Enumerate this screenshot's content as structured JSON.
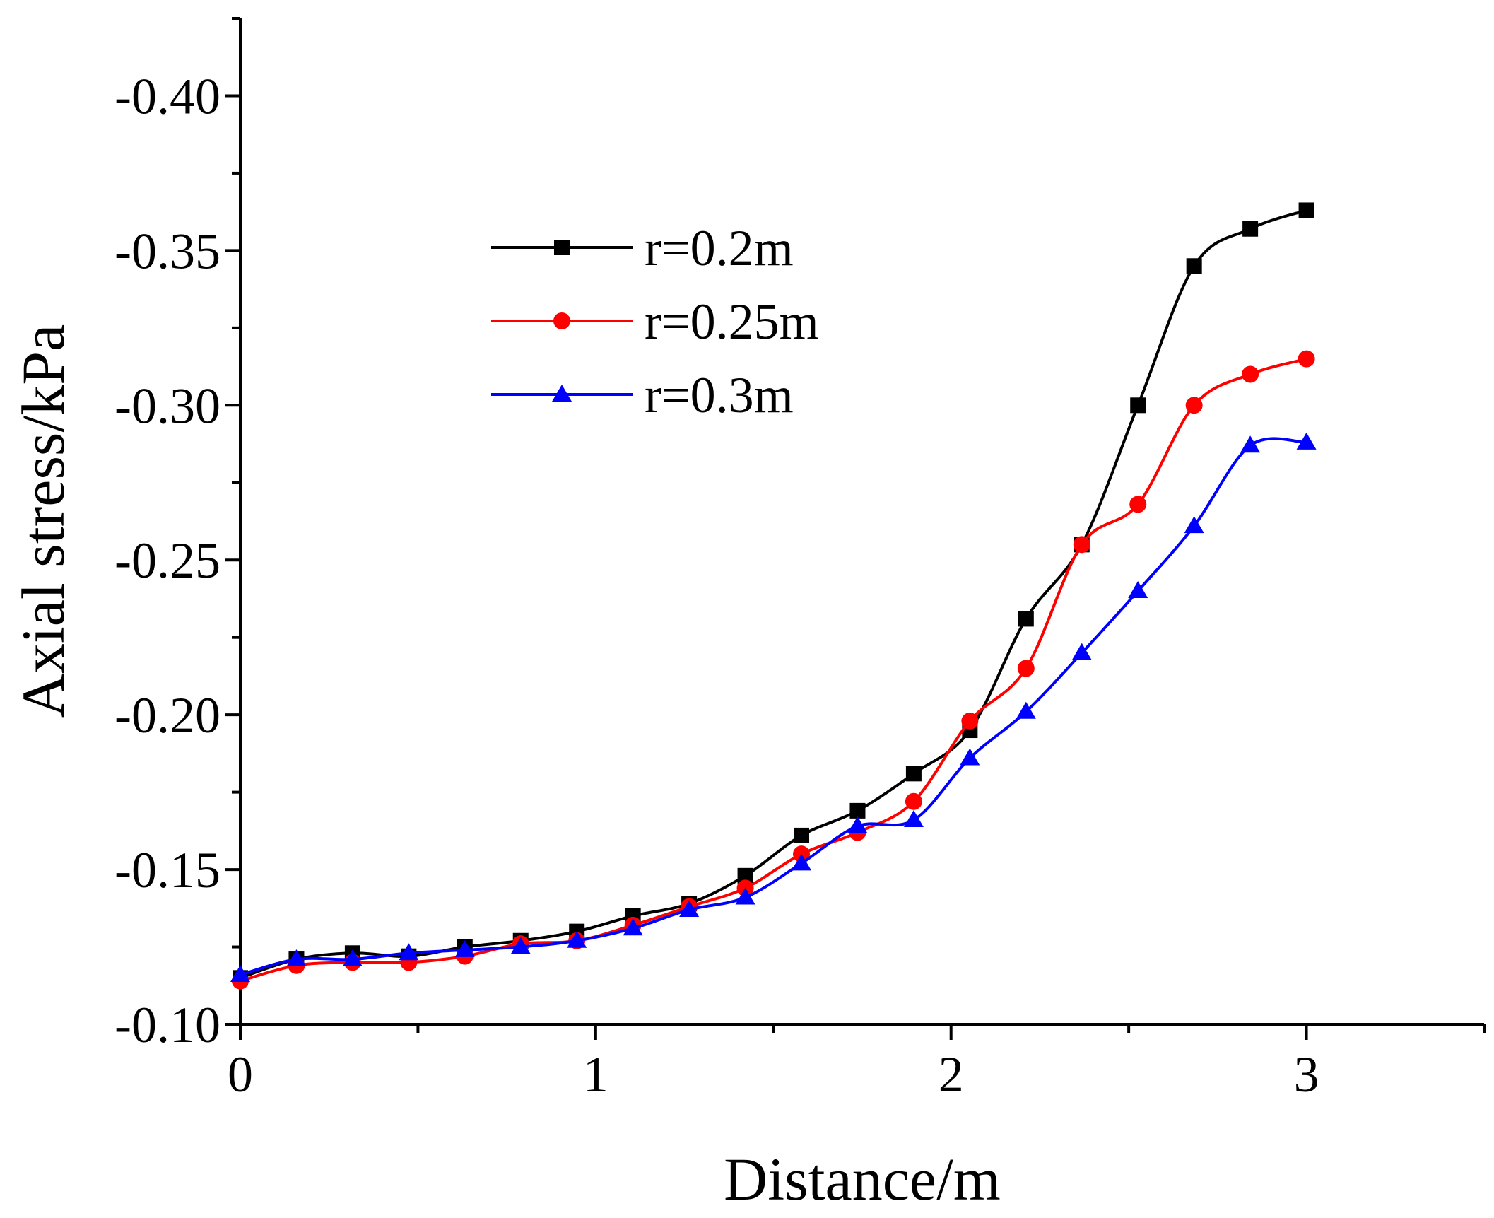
{
  "chart_data": {
    "type": "line",
    "title": "",
    "xlabel": "Distance/m",
    "ylabel": "Axial stress/kPa",
    "xlim": [
      0,
      3.5
    ],
    "ylim": [
      -0.1,
      -0.425
    ],
    "x_ticks": [
      0,
      1,
      2,
      3
    ],
    "x_tick_labels": [
      "0",
      "1",
      "2",
      "3"
    ],
    "y_ticks": [
      -0.1,
      -0.15,
      -0.2,
      -0.25,
      -0.3,
      -0.35,
      -0.4
    ],
    "y_tick_labels": [
      "-0.10",
      "-0.15",
      "-0.20",
      "-0.25",
      "-0.30",
      "-0.35",
      "-0.40"
    ],
    "grid": false,
    "legend_position": "upper-center",
    "series": [
      {
        "name": "r=0.2m",
        "color": "#000000",
        "marker": "square",
        "x": [
          0,
          0.158,
          0.316,
          0.474,
          0.632,
          0.789,
          0.947,
          1.105,
          1.263,
          1.421,
          1.579,
          1.737,
          1.895,
          2.053,
          2.211,
          2.368,
          2.526,
          2.684,
          2.842,
          3.0
        ],
        "y": [
          -0.115,
          -0.121,
          -0.123,
          -0.122,
          -0.125,
          -0.127,
          -0.13,
          -0.135,
          -0.139,
          -0.148,
          -0.161,
          -0.169,
          -0.181,
          -0.195,
          -0.231,
          -0.255,
          -0.3,
          -0.345,
          -0.357,
          -0.363
        ]
      },
      {
        "name": "r=0.25m",
        "color": "#ff0000",
        "marker": "circle",
        "x": [
          0,
          0.158,
          0.316,
          0.474,
          0.632,
          0.789,
          0.947,
          1.105,
          1.263,
          1.421,
          1.579,
          1.737,
          1.895,
          2.053,
          2.211,
          2.368,
          2.526,
          2.684,
          2.842,
          3.0
        ],
        "y": [
          -0.114,
          -0.119,
          -0.12,
          -0.12,
          -0.122,
          -0.126,
          -0.127,
          -0.132,
          -0.138,
          -0.144,
          -0.155,
          -0.162,
          -0.172,
          -0.198,
          -0.215,
          -0.255,
          -0.268,
          -0.3,
          -0.31,
          -0.315
        ]
      },
      {
        "name": "r=0.3m",
        "color": "#0000ff",
        "marker": "triangle",
        "x": [
          0,
          0.158,
          0.316,
          0.474,
          0.632,
          0.789,
          0.947,
          1.105,
          1.263,
          1.421,
          1.579,
          1.737,
          1.895,
          2.053,
          2.211,
          2.368,
          2.526,
          2.684,
          2.842,
          3.0
        ],
        "y": [
          -0.116,
          -0.121,
          -0.121,
          -0.123,
          -0.124,
          -0.125,
          -0.127,
          -0.131,
          -0.137,
          -0.141,
          -0.152,
          -0.164,
          -0.166,
          -0.186,
          -0.201,
          -0.22,
          -0.24,
          -0.261,
          -0.287,
          -0.288
        ]
      }
    ]
  }
}
